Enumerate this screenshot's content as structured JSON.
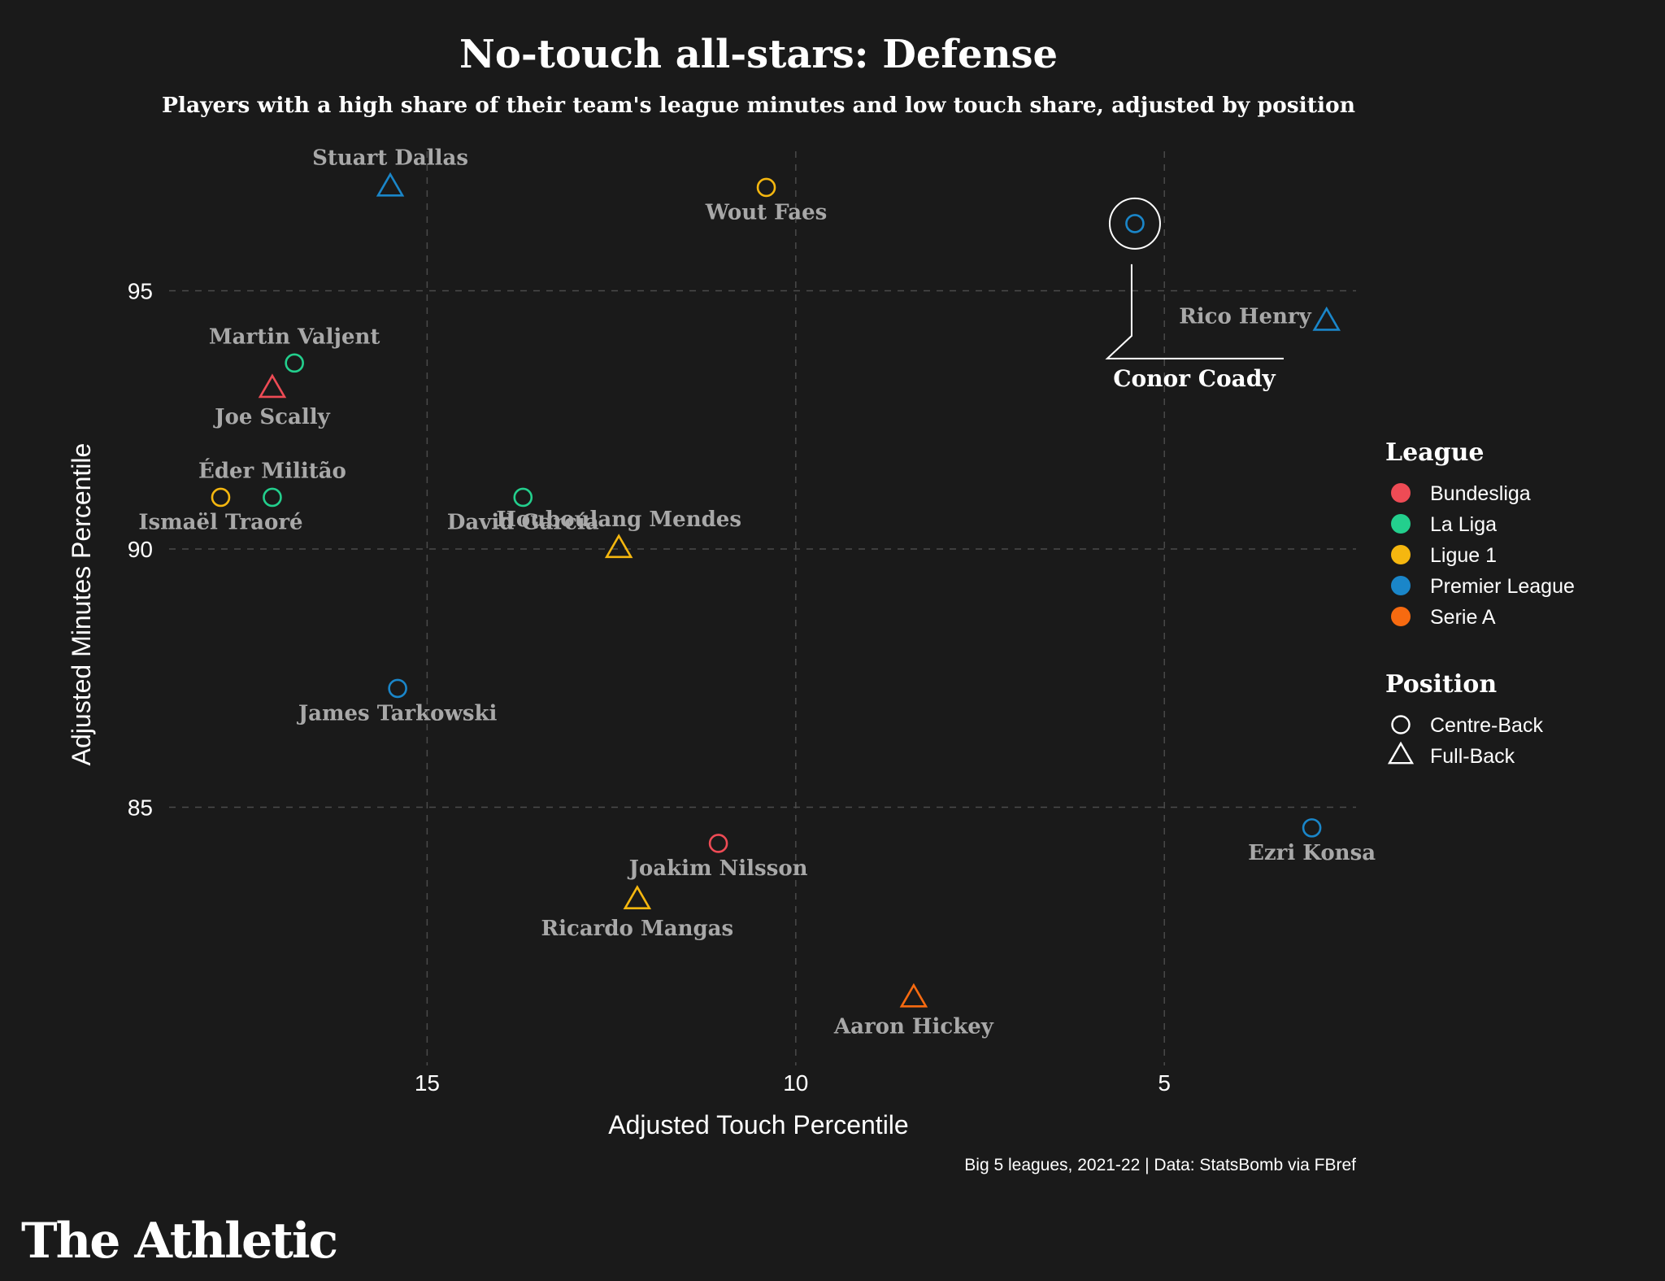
{
  "chart_data": {
    "type": "scatter",
    "title": "No-touch all-stars: Defense",
    "subtitle": "Players with a high share of their team's league minutes and low touch share, adjusted by position",
    "xlabel": "Adjusted Touch Percentile",
    "ylabel": "Adjusted Minutes Percentile",
    "x_reversed": true,
    "xlim": [
      18.5,
      2.4
    ],
    "ylim": [
      80.0,
      97.7
    ],
    "xticks": [
      15,
      10,
      5
    ],
    "yticks": [
      95,
      90,
      85
    ],
    "grid": true,
    "caption": "Big 5 leagues, 2021-22 | Data: StatsBomb via FBref",
    "legend": {
      "league_title": "League",
      "position_title": "Position",
      "leagues": [
        {
          "name": "Bundesliga",
          "color": "#ee4b55"
        },
        {
          "name": "La Liga",
          "color": "#23cf8d"
        },
        {
          "name": "Ligue 1",
          "color": "#f5b70f"
        },
        {
          "name": "Premier League",
          "color": "#1a86c9"
        },
        {
          "name": "Serie A",
          "color": "#f76a10"
        }
      ],
      "positions": [
        {
          "name": "Centre-Back",
          "shape": "circle"
        },
        {
          "name": "Full-Back",
          "shape": "triangle"
        }
      ]
    },
    "points": [
      {
        "name": "Stuart Dallas",
        "x": 15.5,
        "y": 97.0,
        "league": "Premier League",
        "position": "Full-Back",
        "label_pos": "above"
      },
      {
        "name": "Wout Faes",
        "x": 10.4,
        "y": 97.0,
        "league": "Ligue 1",
        "position": "Centre-Back",
        "label_pos": "below"
      },
      {
        "name": "Conor Coady",
        "x": 5.4,
        "y": 96.3,
        "league": "Premier League",
        "position": "Centre-Back",
        "highlight": true
      },
      {
        "name": "Rico Henry",
        "x": 2.8,
        "y": 94.4,
        "league": "Premier League",
        "position": "Full-Back",
        "label_pos": "left"
      },
      {
        "name": "Martin Valjent",
        "x": 16.8,
        "y": 93.6,
        "league": "La Liga",
        "position": "Centre-Back",
        "label_pos": "above"
      },
      {
        "name": "Joe Scally",
        "x": 17.1,
        "y": 93.1,
        "league": "Bundesliga",
        "position": "Full-Back",
        "label_pos": "below"
      },
      {
        "name": "Éder Militão",
        "x": 17.1,
        "y": 91.0,
        "league": "La Liga",
        "position": "Centre-Back",
        "label_pos": "above"
      },
      {
        "name": "Ismaël Traoré",
        "x": 17.8,
        "y": 91.0,
        "league": "Ligue 1",
        "position": "Centre-Back",
        "label_pos": "below"
      },
      {
        "name": "David García",
        "x": 13.7,
        "y": 91.0,
        "league": "La Liga",
        "position": "Centre-Back",
        "label_pos": "below"
      },
      {
        "name": "Houboulang Mendes",
        "x": 12.4,
        "y": 90.0,
        "league": "Ligue 1",
        "position": "Full-Back",
        "label_pos": "above"
      },
      {
        "name": "James Tarkowski",
        "x": 15.4,
        "y": 87.3,
        "league": "Premier League",
        "position": "Centre-Back",
        "label_pos": "below"
      },
      {
        "name": "Ezri Konsa",
        "x": 3.0,
        "y": 84.6,
        "league": "Premier League",
        "position": "Centre-Back",
        "label_pos": "below"
      },
      {
        "name": "Joakim Nilsson",
        "x": 11.05,
        "y": 84.3,
        "league": "Bundesliga",
        "position": "Centre-Back",
        "label_pos": "below"
      },
      {
        "name": "Ricardo Mangas",
        "x": 12.15,
        "y": 83.2,
        "league": "Ligue 1",
        "position": "Full-Back",
        "label_pos": "below"
      },
      {
        "name": "Aaron Hickey",
        "x": 8.4,
        "y": 81.3,
        "league": "Serie A",
        "position": "Full-Back",
        "label_pos": "below"
      }
    ]
  },
  "branding": {
    "logo_text": "The Athletic"
  }
}
